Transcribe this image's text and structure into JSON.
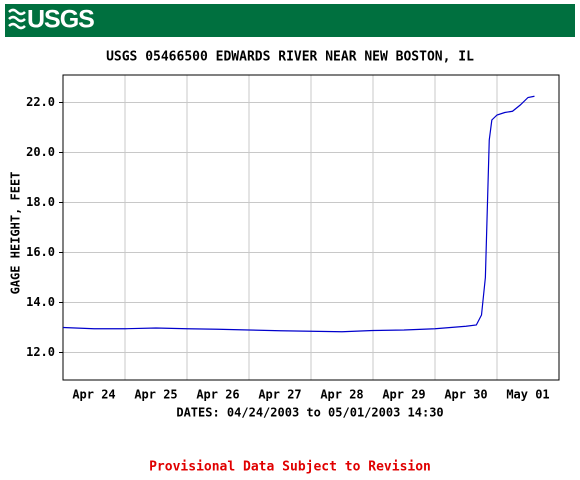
{
  "header": {
    "logo": "USGS"
  },
  "chart_data": {
    "type": "line",
    "title": "USGS 05466500 EDWARDS RIVER NEAR NEW BOSTON, IL",
    "y_label": "GAGE HEIGHT, FEET",
    "x_label": "DATES: 04/24/2003 to 05/01/2003 14:30",
    "note": "Provisional Data Subject to Revision",
    "x": [
      "2003-04-24T00:00",
      "2003-04-24T12:00",
      "2003-04-25T00:00",
      "2003-04-25T12:00",
      "2003-04-26T00:00",
      "2003-04-26T12:00",
      "2003-04-27T00:00",
      "2003-04-27T12:00",
      "2003-04-28T00:00",
      "2003-04-28T12:00",
      "2003-04-29T00:00",
      "2003-04-29T12:00",
      "2003-04-30T00:00",
      "2003-04-30T12:00",
      "2003-04-30T16:00",
      "2003-04-30T18:00",
      "2003-04-30T19:30",
      "2003-04-30T21:00",
      "2003-04-30T22:00",
      "2003-05-01T00:00",
      "2003-05-01T03:00",
      "2003-05-01T06:00",
      "2003-05-01T09:00",
      "2003-05-01T12:00",
      "2003-05-01T14:30"
    ],
    "series": [
      {
        "color": "#0000cc",
        "values": [
          13.0,
          12.95,
          12.95,
          12.98,
          12.95,
          12.93,
          12.9,
          12.87,
          12.85,
          12.83,
          12.88,
          12.9,
          12.95,
          13.05,
          13.1,
          13.5,
          15.0,
          20.5,
          21.3,
          21.5,
          21.6,
          21.65,
          21.9,
          22.2,
          22.25
        ]
      }
    ],
    "xlim": [
      "2003-04-24T00:00",
      "2003-05-02T00:00"
    ],
    "xticks": [
      {
        "value": "2003-04-24T12:00",
        "label": "Apr 24"
      },
      {
        "value": "2003-04-25T12:00",
        "label": "Apr 25"
      },
      {
        "value": "2003-04-26T12:00",
        "label": "Apr 26"
      },
      {
        "value": "2003-04-27T12:00",
        "label": "Apr 27"
      },
      {
        "value": "2003-04-28T12:00",
        "label": "Apr 28"
      },
      {
        "value": "2003-04-29T12:00",
        "label": "Apr 29"
      },
      {
        "value": "2003-04-30T12:00",
        "label": "Apr 30"
      },
      {
        "value": "2003-05-01T12:00",
        "label": "May 01"
      }
    ],
    "ylim": [
      10.9,
      23.1
    ],
    "yticks": [
      {
        "value": 12,
        "label": "12.0"
      },
      {
        "value": 14,
        "label": "14.0"
      },
      {
        "value": 16,
        "label": "16.0"
      },
      {
        "value": 18,
        "label": "18.0"
      },
      {
        "value": 20,
        "label": "20.0"
      },
      {
        "value": 22,
        "label": "22.0"
      }
    ],
    "grid": true
  }
}
